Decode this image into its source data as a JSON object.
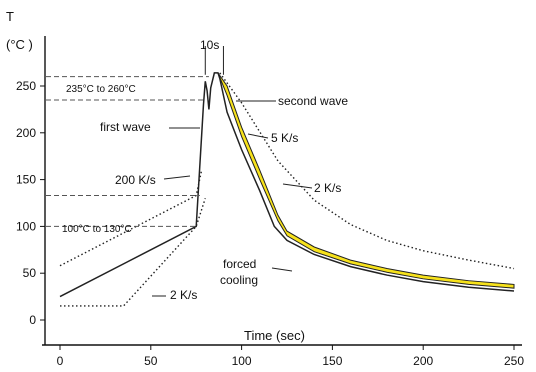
{
  "chart_data": {
    "type": "line",
    "title": "",
    "ylabel": "T",
    "yunit": "(°C )",
    "xlabel": "Time (sec)",
    "xlim": [
      0,
      250
    ],
    "ylim": [
      0,
      270
    ],
    "xticks": [
      0,
      50,
      100,
      150,
      200,
      250
    ],
    "yticks": [
      0,
      50,
      100,
      150,
      200,
      250
    ],
    "grid": false,
    "legend": "none",
    "colors": {
      "profile": "#222222",
      "band": "#f7e21b",
      "band_edge": "#222222",
      "reference": "#555555"
    },
    "series": [
      {
        "name": "",
        "style": "solid",
        "x": [
          0,
          75,
          79,
          80,
          81,
          82,
          83,
          85,
          87,
          88,
          92,
          100,
          110,
          118,
          125,
          140,
          160,
          180,
          200,
          225,
          250
        ],
        "y": [
          25,
          100,
          230,
          255,
          245,
          225,
          248,
          264,
          264,
          258,
          222,
          182,
          138,
          100,
          85,
          70,
          57,
          48,
          41,
          35,
          31
        ]
      },
      {
        "name": "",
        "style": "band",
        "x": [
          87,
          92,
          100,
          110,
          120,
          125,
          140,
          160,
          180,
          200,
          225,
          250
        ],
        "y_lower": [
          264,
          240,
          196,
          150,
          106,
          90,
          73,
          60,
          51,
          44,
          38,
          34
        ],
        "y_upper": [
          264,
          250,
          206,
          160,
          112,
          95,
          78,
          64,
          55,
          48,
          42,
          38
        ]
      },
      {
        "name": "",
        "style": "dotted",
        "x": [
          0,
          35,
          75,
          80
        ],
        "y": [
          15,
          15,
          100,
          130
        ]
      },
      {
        "name": "",
        "style": "dotted",
        "x": [
          0,
          75,
          78
        ],
        "y": [
          58,
          133,
          160
        ]
      },
      {
        "name": "",
        "style": "dotted",
        "x": [
          88,
          100,
          120,
          140,
          160,
          180,
          200,
          225,
          250
        ],
        "y": [
          264,
          232,
          170,
          128,
          102,
          85,
          74,
          64,
          55
        ]
      }
    ],
    "reference_lines": [
      {
        "y": 260,
        "x_end": 82
      },
      {
        "y": 235,
        "x_end": 79
      },
      {
        "y": 133,
        "x_end": 77
      },
      {
        "y": 100,
        "x_end": 75
      }
    ],
    "time_markers": [
      80,
      90
    ],
    "annotations": {
      "top_marker": "10s",
      "range_high": "235°C to 260°C",
      "range_low": "100°C to 130°C",
      "first_wave": "first wave",
      "second_wave": "second wave",
      "rate_200": "200 K/s",
      "rate_5": "5 K/s",
      "rate_2_cool": "2 K/s",
      "rate_2_heat": "2 K/s",
      "forced": "forced",
      "cooling": "cooling"
    }
  }
}
